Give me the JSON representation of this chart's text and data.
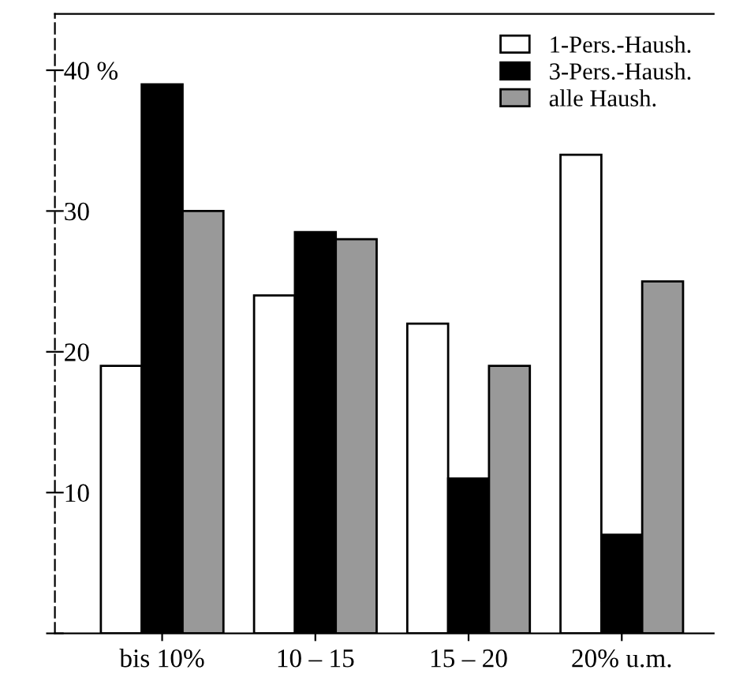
{
  "chart_data": {
    "type": "bar",
    "categories": [
      "bis 10%",
      "10 – 15",
      "15 – 20",
      "20% u.m."
    ],
    "series": [
      {
        "name": "1-Pers.-Haush.",
        "color": "#ffffff",
        "values": [
          19,
          24,
          22,
          34
        ]
      },
      {
        "name": "3-Pers.-Haush.",
        "color": "#000000",
        "values": [
          39,
          28.5,
          11,
          7
        ]
      },
      {
        "name": "alle Haush.",
        "color": "#999999",
        "values": [
          30,
          28,
          19,
          25
        ]
      }
    ],
    "ylim": [
      0,
      44
    ],
    "yticks": [
      {
        "value": 0,
        "label": null
      },
      {
        "value": 10,
        "label": "10"
      },
      {
        "value": 20,
        "label": "20"
      },
      {
        "value": 30,
        "label": "30"
      },
      {
        "value": 40,
        "label": "40 %"
      }
    ],
    "legend": "top right",
    "grid": false
  }
}
